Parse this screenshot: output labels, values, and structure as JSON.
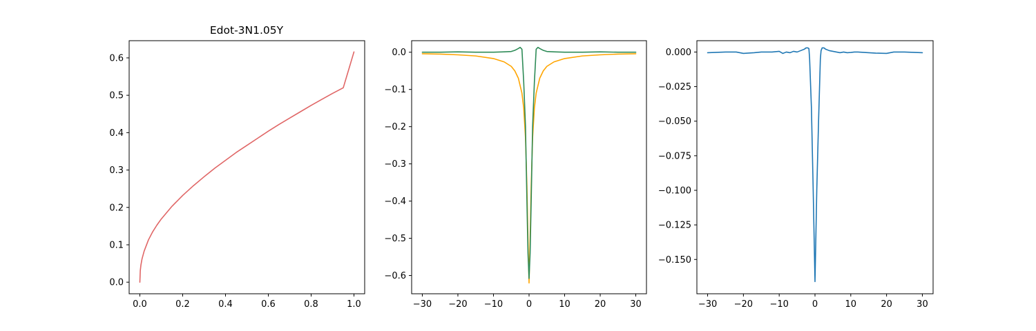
{
  "chart_data": [
    {
      "type": "line",
      "title": "Edot-3N1.05Y",
      "xlabel": "",
      "ylabel": "",
      "xlim": [
        -0.05,
        1.05
      ],
      "ylim": [
        -0.031,
        0.646
      ],
      "grid": false,
      "xticks": [
        0.0,
        0.2,
        0.4,
        0.6,
        0.8,
        1.0
      ],
      "xtick_labels": [
        "0.0",
        "0.2",
        "0.4",
        "0.6",
        "0.8",
        "1.0"
      ],
      "yticks": [
        0.0,
        0.1,
        0.2,
        0.3,
        0.4,
        0.5,
        0.6
      ],
      "ytick_labels": [
        "0.0",
        "0.1",
        "0.2",
        "0.3",
        "0.4",
        "0.5",
        "0.6"
      ],
      "series": [
        {
          "color": "#e06666",
          "x": [
            0.0,
            0.002,
            0.005,
            0.01,
            0.02,
            0.04,
            0.06,
            0.08,
            0.1,
            0.15,
            0.2,
            0.25,
            0.3,
            0.35,
            0.4,
            0.45,
            0.5,
            0.55,
            0.6,
            0.65,
            0.7,
            0.75,
            0.8,
            0.85,
            0.9,
            0.95,
            1.0
          ],
          "y": [
            0.0,
            0.031,
            0.046,
            0.062,
            0.083,
            0.113,
            0.135,
            0.153,
            0.169,
            0.203,
            0.232,
            0.258,
            0.282,
            0.305,
            0.326,
            0.347,
            0.366,
            0.385,
            0.404,
            0.422,
            0.439,
            0.456,
            0.473,
            0.489,
            0.505,
            0.52,
            0.616
          ]
        }
      ]
    },
    {
      "type": "line",
      "title": "",
      "xlabel": "",
      "ylabel": "",
      "xlim": [
        -33,
        33
      ],
      "ylim": [
        -0.649,
        0.031
      ],
      "grid": false,
      "xticks": [
        -30,
        -20,
        -10,
        0,
        10,
        20,
        30
      ],
      "xtick_labels": [
        "−30",
        "−20",
        "−10",
        "0",
        "10",
        "20",
        "30"
      ],
      "yticks": [
        0.0,
        -0.1,
        -0.2,
        -0.3,
        -0.4,
        -0.5,
        -0.6
      ],
      "ytick_labels": [
        "0.0",
        "−0.1",
        "−0.2",
        "−0.3",
        "−0.4",
        "−0.5",
        "−0.6"
      ],
      "series": [
        {
          "color": "#ffa500",
          "x": [
            -30,
            -25,
            -20,
            -15,
            -10,
            -7,
            -5,
            -4,
            -3,
            -2,
            -1.5,
            -1,
            -0.6,
            -0.3,
            0,
            0.3,
            0.6,
            1,
            1.5,
            2,
            3,
            4,
            5,
            7,
            10,
            15,
            20,
            25,
            30
          ],
          "y": [
            -0.004,
            -0.005,
            -0.007,
            -0.01,
            -0.017,
            -0.026,
            -0.038,
            -0.05,
            -0.07,
            -0.11,
            -0.15,
            -0.23,
            -0.36,
            -0.5,
            -0.62,
            -0.5,
            -0.36,
            -0.23,
            -0.15,
            -0.11,
            -0.07,
            -0.05,
            -0.038,
            -0.026,
            -0.017,
            -0.01,
            -0.007,
            -0.005,
            -0.004
          ]
        },
        {
          "color": "#2e8b57",
          "x": [
            -30,
            -25,
            -20,
            -15,
            -10,
            -7,
            -5,
            -4,
            -3,
            -2.5,
            -2,
            -1.5,
            -1,
            -0.6,
            -0.3,
            0,
            0.3,
            0.6,
            1,
            1.5,
            2,
            2.5,
            3,
            4,
            5,
            7,
            10,
            15,
            20,
            25,
            30
          ],
          "y": [
            0.0,
            0.0,
            0.001,
            0.0,
            0.0,
            0.001,
            0.002,
            0.005,
            0.01,
            0.013,
            0.008,
            -0.08,
            -0.2,
            -0.4,
            -0.54,
            -0.608,
            -0.54,
            -0.4,
            -0.2,
            -0.08,
            0.008,
            0.013,
            0.01,
            0.005,
            0.002,
            0.001,
            0.0,
            0.0,
            0.001,
            0.0,
            0.0
          ]
        }
      ]
    },
    {
      "type": "line",
      "title": "",
      "xlabel": "",
      "ylabel": "",
      "xlim": [
        -33,
        33
      ],
      "ylim": [
        -0.1748,
        0.0082
      ],
      "grid": false,
      "xticks": [
        -30,
        -20,
        -10,
        0,
        10,
        20,
        30
      ],
      "xtick_labels": [
        "−30",
        "−20",
        "−10",
        "0",
        "10",
        "20",
        "30"
      ],
      "yticks": [
        0.0,
        -0.025,
        -0.05,
        -0.075,
        -0.1,
        -0.125,
        -0.15
      ],
      "ytick_labels": [
        "0.000",
        "−0.025",
        "−0.050",
        "−0.075",
        "−0.100",
        "−0.125",
        "−0.150"
      ],
      "series": [
        {
          "color": "#1f77b4",
          "x": [
            -30,
            -25,
            -22,
            -20,
            -17,
            -15,
            -12,
            -10,
            -9,
            -8,
            -7,
            -6,
            -5,
            -4,
            -3,
            -2.5,
            -2,
            -1.7,
            -1.5,
            -1,
            -0.5,
            -0.2,
            0,
            0.2,
            0.5,
            1,
            1.5,
            1.7,
            2,
            2.5,
            3,
            4,
            5,
            6,
            7,
            8,
            9,
            10,
            11,
            12,
            15,
            17,
            20,
            22,
            25,
            30
          ],
          "y": [
            -0.0005,
            0.0,
            0.0,
            -0.001,
            -0.0005,
            0.0,
            0.0,
            0.0005,
            -0.001,
            0.0,
            -0.0005,
            0.0005,
            0.0,
            0.001,
            0.002,
            0.003,
            0.003,
            0.0025,
            -0.005,
            -0.04,
            -0.1,
            -0.14,
            -0.166,
            -0.14,
            -0.1,
            -0.05,
            -0.005,
            0.001,
            0.003,
            0.003,
            0.002,
            0.001,
            0.0005,
            0.0,
            -0.0005,
            0.0,
            -0.0005,
            -0.0003,
            0.0,
            0.0,
            -0.0005,
            -0.0008,
            -0.001,
            0.0,
            0.0,
            -0.0005
          ]
        }
      ]
    }
  ]
}
